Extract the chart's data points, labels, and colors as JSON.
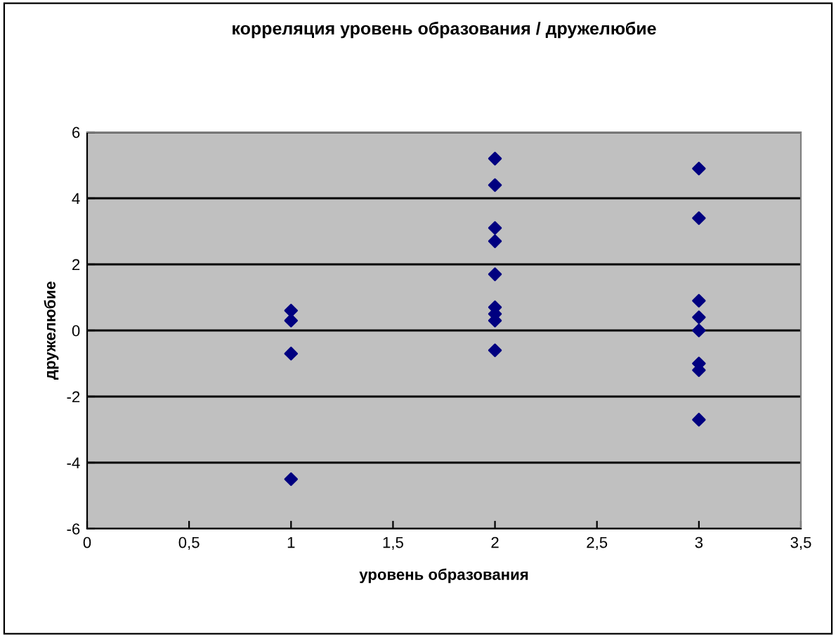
{
  "chart_data": {
    "type": "scatter",
    "title": "корреляция уровень образования / дружелюбие",
    "xlabel": "уровень образования",
    "ylabel": "дружелюбие",
    "series": [
      {
        "color": "#000080",
        "x": [
          1,
          1,
          1,
          1,
          2,
          2,
          2,
          2,
          2,
          2,
          2,
          2,
          2,
          3,
          3,
          3,
          3,
          3,
          3,
          3,
          3
        ],
        "values": [
          0.6,
          0.3,
          -0.7,
          -4.5,
          5.2,
          4.4,
          3.1,
          2.7,
          1.7,
          0.7,
          0.5,
          0.3,
          -0.6,
          4.9,
          3.4,
          0.9,
          0.4,
          0,
          -1.0,
          -1.2,
          -2.7
        ]
      }
    ],
    "xlim": [
      0,
      3.5
    ],
    "xticks": [
      0,
      {
        "value": 0.5,
        "label": "0,5"
      },
      1,
      {
        "value": 1.5,
        "label": "1,5"
      },
      2,
      {
        "value": 2.5,
        "label": "2,5"
      },
      3,
      {
        "value": 3.5,
        "label": "3,5"
      }
    ],
    "ylim": [
      -6,
      6
    ],
    "yticks": [
      -6,
      -4,
      -2,
      0,
      2,
      4,
      6
    ],
    "grid": "y",
    "marker": "diamond",
    "legend": false
  }
}
